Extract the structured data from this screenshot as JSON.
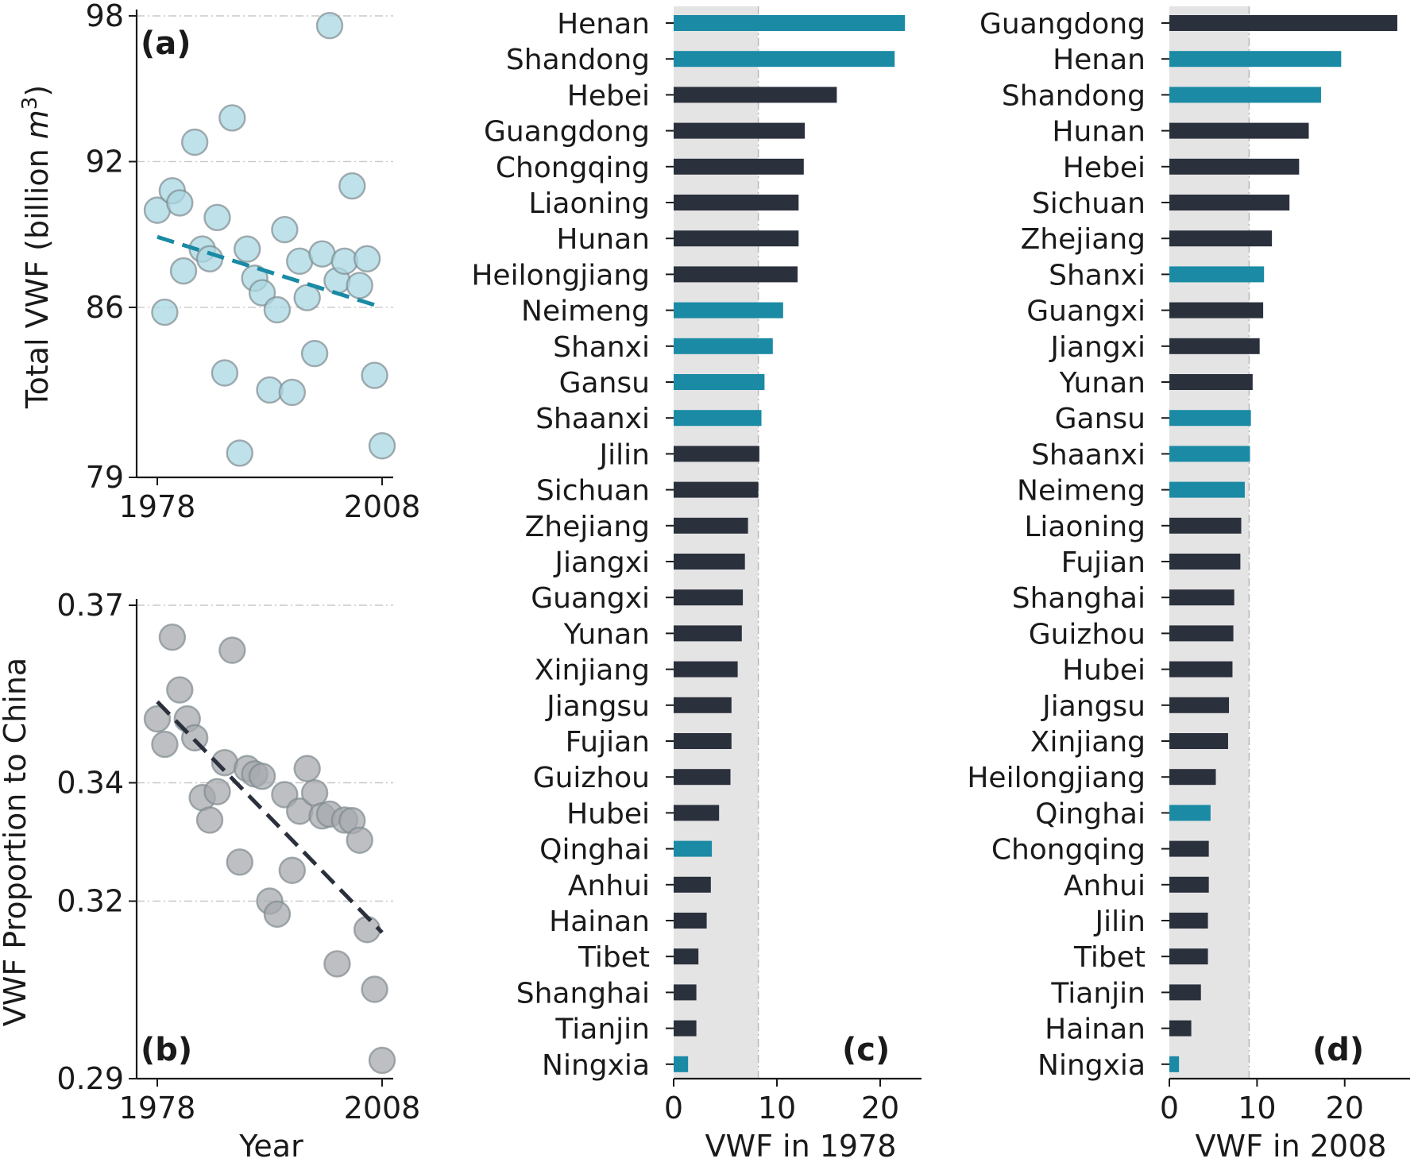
{
  "colors": {
    "teal": "#1a8aa5",
    "dark": "#2b303d",
    "scatter_a_fill": "#a9d7e2",
    "scatter_b_fill": "#a7a9ae",
    "scatter_edge": "#7f8a8f",
    "band": "#e4e4e4",
    "grid": "#c8c8c8",
    "axis": "#1a1a1a"
  },
  "chart_data": [
    {
      "id": "a",
      "type": "scatter",
      "panel_label": "(a)",
      "ylabel": "Total VWF (billion m3)",
      "ylabel_parts": [
        "Total VWF (billion ",
        "m",
        "3",
        ")"
      ],
      "xlabel": "",
      "xlim": [
        1978,
        2008
      ],
      "ylim": [
        79,
        98
      ],
      "xticks": [
        1978,
        2008
      ],
      "yticks": [
        79,
        86,
        92,
        98
      ],
      "grid": "horizontal dash-dot",
      "points": [
        [
          1978,
          90.0
        ],
        [
          1979,
          85.8
        ],
        [
          1980,
          90.8
        ],
        [
          1981,
          90.3
        ],
        [
          1981.5,
          87.5
        ],
        [
          1983,
          92.8
        ],
        [
          1984,
          88.4
        ],
        [
          1985,
          88.0
        ],
        [
          1986,
          89.7
        ],
        [
          1987,
          83.3
        ],
        [
          1988,
          93.8
        ],
        [
          1989,
          80.0
        ],
        [
          1990,
          88.4
        ],
        [
          1991,
          87.2
        ],
        [
          1992,
          86.6
        ],
        [
          1993,
          82.6
        ],
        [
          1994,
          85.9
        ],
        [
          1995,
          89.2
        ],
        [
          1996,
          82.5
        ],
        [
          1997,
          87.9
        ],
        [
          1998,
          86.4
        ],
        [
          1999,
          84.1
        ],
        [
          2000,
          88.2
        ],
        [
          2001,
          97.6
        ],
        [
          2002,
          87.1
        ],
        [
          2003,
          87.9
        ],
        [
          2004,
          91.0
        ],
        [
          2005,
          86.9
        ],
        [
          2006,
          88.0
        ],
        [
          2007,
          83.2
        ],
        [
          2008,
          80.3
        ]
      ],
      "trend": {
        "x": [
          1978,
          2008
        ],
        "y": [
          88.9,
          86.0
        ]
      }
    },
    {
      "id": "b",
      "type": "scatter",
      "panel_label": "(b)",
      "ylabel": "VWF Proportion to China",
      "xlabel": "Year",
      "xlim": [
        1978,
        2008
      ],
      "ylim": [
        0.29,
        0.37
      ],
      "xticks": [
        1978,
        2008
      ],
      "yticks": [
        0.29,
        0.32,
        0.34,
        0.37
      ],
      "ytick_labels": [
        "0.29",
        "0.32",
        "0.34",
        "0.37"
      ],
      "grid": "horizontal dash-dot",
      "points": [
        [
          1978,
          0.3508
        ],
        [
          1979,
          0.3465
        ],
        [
          1980,
          0.3646
        ],
        [
          1981,
          0.3557
        ],
        [
          1982,
          0.3508
        ],
        [
          1983,
          0.3476
        ],
        [
          1984,
          0.3375
        ],
        [
          1985,
          0.3337
        ],
        [
          1986,
          0.3385
        ],
        [
          1987,
          0.3434
        ],
        [
          1988,
          0.3624
        ],
        [
          1989,
          0.3266
        ],
        [
          1990,
          0.3424
        ],
        [
          1991,
          0.3415
        ],
        [
          1992,
          0.3411
        ],
        [
          1993,
          0.32
        ],
        [
          1994,
          0.3178
        ],
        [
          1995,
          0.338
        ],
        [
          1996,
          0.3252
        ],
        [
          1997,
          0.3352
        ],
        [
          1998,
          0.3424
        ],
        [
          1999,
          0.3383
        ],
        [
          2000,
          0.3344
        ],
        [
          2001,
          0.3347
        ],
        [
          2002,
          0.3094
        ],
        [
          2003,
          0.3337
        ],
        [
          2004,
          0.3336
        ],
        [
          2005,
          0.3303
        ],
        [
          2006,
          0.3152
        ],
        [
          2007,
          0.3051
        ],
        [
          2008,
          0.2931
        ]
      ],
      "trend": {
        "x": [
          1978,
          2008
        ],
        "y": [
          0.3537,
          0.3147
        ]
      }
    },
    {
      "id": "c",
      "type": "bar",
      "orientation": "horizontal",
      "panel_label": "(c)",
      "xlabel": "VWF in 1978",
      "xlim": [
        0,
        24
      ],
      "xticks": [
        0,
        10,
        20
      ],
      "band": [
        0,
        8.2
      ],
      "categories": [
        "Henan",
        "Shandong",
        "Hebei",
        "Guangdong",
        "Chongqing",
        "Liaoning",
        "Hunan",
        "Heilongjiang",
        "Neimeng",
        "Shanxi",
        "Gansu",
        "Shaanxi",
        "Jilin",
        "Sichuan",
        "Zhejiang",
        "Jiangxi",
        "Guangxi",
        "Yunan",
        "Xinjiang",
        "Jiangsu",
        "Fujian",
        "Guizhou",
        "Hubei",
        "Qinghai",
        "Anhui",
        "Hainan",
        "Tibet",
        "Shanghai",
        "Tianjin",
        "Ningxia"
      ],
      "values": [
        22.4,
        21.4,
        15.8,
        12.7,
        12.6,
        12.1,
        12.1,
        12.0,
        10.6,
        9.6,
        8.8,
        8.5,
        8.3,
        8.2,
        7.2,
        6.9,
        6.7,
        6.6,
        6.2,
        5.6,
        5.6,
        5.5,
        4.4,
        3.7,
        3.6,
        3.2,
        2.4,
        2.2,
        2.2,
        1.4
      ],
      "highlight": [
        true,
        true,
        false,
        false,
        false,
        false,
        false,
        false,
        true,
        true,
        true,
        true,
        false,
        false,
        false,
        false,
        false,
        false,
        false,
        false,
        false,
        false,
        false,
        true,
        false,
        false,
        false,
        false,
        false,
        true
      ]
    },
    {
      "id": "d",
      "type": "bar",
      "orientation": "horizontal",
      "panel_label": "(d)",
      "xlabel": "VWF in 2008",
      "xlim": [
        0,
        27
      ],
      "xticks": [
        0,
        10,
        20
      ],
      "band": [
        0,
        9.1
      ],
      "categories": [
        "Guangdong",
        "Henan",
        "Shandong",
        "Hunan",
        "Hebei",
        "Sichuan",
        "Zhejiang",
        "Shanxi",
        "Guangxi",
        "Jiangxi",
        "Yunan",
        "Gansu",
        "Shaanxi",
        "Neimeng",
        "Liaoning",
        "Fujian",
        "Shanghai",
        "Guizhou",
        "Hubei",
        "Jiangsu",
        "Xinjiang",
        "Heilongjiang",
        "Qinghai",
        "Chongqing",
        "Anhui",
        "Jilin",
        "Tibet",
        "Tianjin",
        "Hainan",
        "Ningxia"
      ],
      "values": [
        26.0,
        19.6,
        17.3,
        15.9,
        14.8,
        13.7,
        11.7,
        10.8,
        10.7,
        10.3,
        9.5,
        9.3,
        9.2,
        8.6,
        8.2,
        8.1,
        7.4,
        7.3,
        7.2,
        6.8,
        6.7,
        5.3,
        4.7,
        4.5,
        4.5,
        4.4,
        4.4,
        3.6,
        2.5,
        1.1
      ],
      "highlight": [
        false,
        true,
        true,
        false,
        false,
        false,
        false,
        true,
        false,
        false,
        false,
        true,
        true,
        true,
        false,
        false,
        false,
        false,
        false,
        false,
        false,
        false,
        true,
        false,
        false,
        false,
        false,
        false,
        false,
        true
      ]
    }
  ]
}
